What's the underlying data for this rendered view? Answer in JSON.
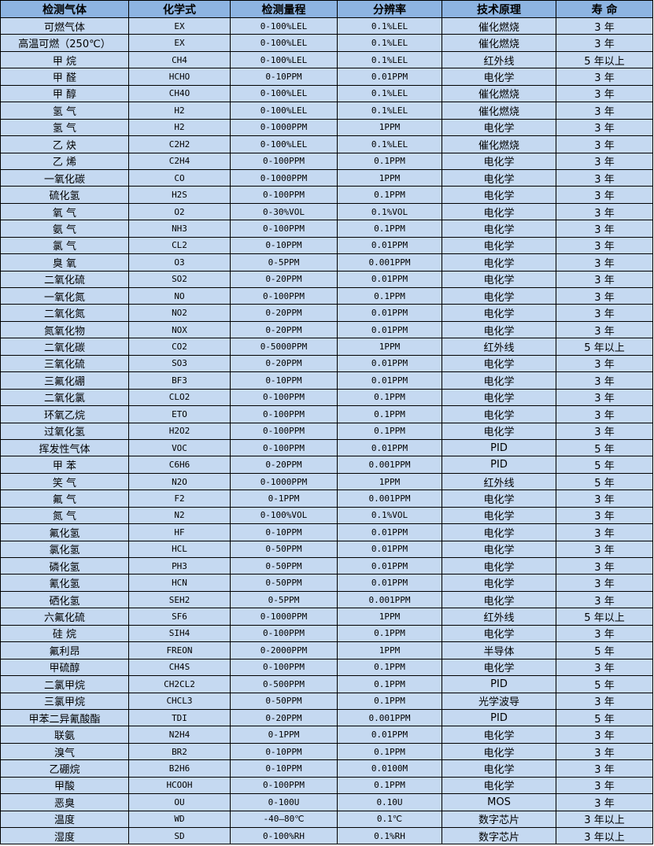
{
  "table": {
    "headers": [
      "检测气体",
      "化学式",
      "检测量程",
      "分辨率",
      "技术原理",
      "寿 命"
    ],
    "rows": [
      [
        "可燃气体",
        "EX",
        "0-100%LEL",
        "0.1%LEL",
        "催化燃烧",
        "3 年"
      ],
      [
        "高温可燃（250℃）",
        "EX",
        "0-100%LEL",
        "0.1%LEL",
        "催化燃烧",
        "3 年"
      ],
      [
        "甲 烷",
        "CH4",
        "0-100%LEL",
        "0.1%LEL",
        "红外线",
        "5 年以上"
      ],
      [
        "甲 醛",
        "HCHO",
        "0-10PPM",
        "0.01PPM",
        "电化学",
        "3 年"
      ],
      [
        "甲 醇",
        "CH4O",
        "0-100%LEL",
        "0.1%LEL",
        "催化燃烧",
        "3 年"
      ],
      [
        "氢 气",
        "H2",
        "0-100%LEL",
        "0.1%LEL",
        "催化燃烧",
        "3 年"
      ],
      [
        "氢 气",
        "H2",
        "0-1000PPM",
        "1PPM",
        "电化学",
        "3 年"
      ],
      [
        "乙 炔",
        "C2H2",
        "0-100%LEL",
        "0.1%LEL",
        "催化燃烧",
        "3 年"
      ],
      [
        "乙 烯",
        "C2H4",
        "0-100PPM",
        "0.1PPM",
        "电化学",
        "3 年"
      ],
      [
        "一氧化碳",
        "CO",
        "0-1000PPM",
        "1PPM",
        "电化学",
        "3 年"
      ],
      [
        "硫化氢",
        "H2S",
        "0-100PPM",
        "0.1PPM",
        "电化学",
        "3 年"
      ],
      [
        "氧 气",
        "O2",
        "0-30%VOL",
        "0.1%VOL",
        "电化学",
        "3 年"
      ],
      [
        "氨 气",
        "NH3",
        "0-100PPM",
        "0.1PPM",
        "电化学",
        "3 年"
      ],
      [
        "氯 气",
        "CL2",
        "0-10PPM",
        "0.01PPM",
        "电化学",
        "3 年"
      ],
      [
        "臭 氧",
        "O3",
        "0-5PPM",
        "0.001PPM",
        "电化学",
        "3 年"
      ],
      [
        "二氧化硫",
        "SO2",
        "0-20PPM",
        "0.01PPM",
        "电化学",
        "3 年"
      ],
      [
        "一氧化氮",
        "NO",
        "0-100PPM",
        "0.1PPM",
        "电化学",
        "3 年"
      ],
      [
        "二氧化氮",
        "NO2",
        "0-20PPM",
        "0.01PPM",
        "电化学",
        "3 年"
      ],
      [
        "氮氧化物",
        "NOX",
        "0-20PPM",
        "0.01PPM",
        "电化学",
        "3 年"
      ],
      [
        "二氧化碳",
        "CO2",
        "0-5000PPM",
        "1PPM",
        "红外线",
        "5 年以上"
      ],
      [
        "三氧化硫",
        "SO3",
        "0-20PPM",
        "0.01PPM",
        "电化学",
        "3 年"
      ],
      [
        "三氟化硼",
        "BF3",
        "0-10PPM",
        "0.01PPM",
        "电化学",
        "3 年"
      ],
      [
        "二氧化氯",
        "CLO2",
        "0-100PPM",
        "0.1PPM",
        "电化学",
        "3 年"
      ],
      [
        "环氧乙烷",
        "ETO",
        "0-100PPM",
        "0.1PPM",
        "电化学",
        "3 年"
      ],
      [
        "过氧化氢",
        "H2O2",
        "0-100PPM",
        "0.1PPM",
        "电化学",
        "3 年"
      ],
      [
        "挥发性气体",
        "VOC",
        "0-100PPM",
        "0.01PPM",
        "PID",
        "5 年"
      ],
      [
        "甲 苯",
        "C6H6",
        "0-20PPM",
        "0.001PPM",
        "PID",
        "5 年"
      ],
      [
        "笑 气",
        "N2O",
        "0-1000PPM",
        "1PPM",
        "红外线",
        "5 年"
      ],
      [
        "氟 气",
        "F2",
        "0-1PPM",
        "0.001PPM",
        "电化学",
        "3 年"
      ],
      [
        "氮 气",
        "N2",
        "0-100%VOL",
        "0.1%VOL",
        "电化学",
        "3 年"
      ],
      [
        "氟化氢",
        "HF",
        "0-10PPM",
        "0.01PPM",
        "电化学",
        "3 年"
      ],
      [
        "氯化氢",
        "HCL",
        "0-50PPM",
        "0.01PPM",
        "电化学",
        "3 年"
      ],
      [
        "磷化氢",
        "PH3",
        "0-50PPM",
        "0.01PPM",
        "电化学",
        "3 年"
      ],
      [
        "氰化氢",
        "HCN",
        "0-50PPM",
        "0.01PPM",
        "电化学",
        "3 年"
      ],
      [
        "硒化氢",
        "SEH2",
        "0-5PPM",
        "0.001PPM",
        "电化学",
        "3 年"
      ],
      [
        "六氟化硫",
        "SF6",
        "0-1000PPM",
        "1PPM",
        "红外线",
        "5 年以上"
      ],
      [
        "硅 烷",
        "SIH4",
        "0-100PPM",
        "0.1PPM",
        "电化学",
        "3 年"
      ],
      [
        "氟利昂",
        "FREON",
        "0-2000PPM",
        "1PPM",
        "半导体",
        "5 年"
      ],
      [
        "甲硫醇",
        "CH4S",
        "0-100PPM",
        "0.1PPM",
        "电化学",
        "3 年"
      ],
      [
        "二氯甲烷",
        "CH2CL2",
        "0-500PPM",
        "0.1PPM",
        "PID",
        "5 年"
      ],
      [
        "三氯甲烷",
        "CHCL3",
        "0-50PPM",
        "0.1PPM",
        "光学波导",
        "3 年"
      ],
      [
        "甲苯二异氰酸酯",
        "TDI",
        "0-20PPM",
        "0.001PPM",
        "PID",
        "5 年"
      ],
      [
        "联氨",
        "N2H4",
        "0-1PPM",
        "0.01PPM",
        "电化学",
        "3 年"
      ],
      [
        "溴气",
        "BR2",
        "0-10PPM",
        "0.1PPM",
        "电化学",
        "3 年"
      ],
      [
        "乙硼烷",
        "B2H6",
        "0-10PPM",
        "0.0100M",
        "电化学",
        "3 年"
      ],
      [
        "甲酸",
        "HCOOH",
        "0-100PPM",
        "0.1PPM",
        "电化学",
        "3 年"
      ],
      [
        "恶臭",
        "OU",
        "0-100U",
        "0.10U",
        "MOS",
        "3 年"
      ],
      [
        "温度",
        "WD",
        "-40—80℃",
        "0.1℃",
        "数字芯片",
        "3 年以上"
      ],
      [
        "湿度",
        "SD",
        "0-100%RH",
        "0.1%RH",
        "数字芯片",
        "3 年以上"
      ]
    ]
  },
  "colors": {
    "header_bg": "#8db4e2",
    "cell_bg": "#c5d9f1",
    "border": "#000000"
  }
}
